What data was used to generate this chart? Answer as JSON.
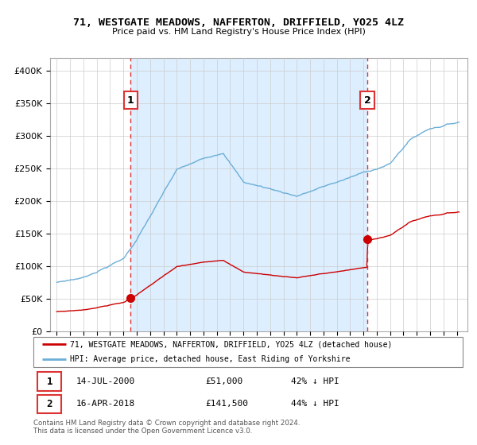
{
  "title": "71, WESTGATE MEADOWS, NAFFERTON, DRIFFIELD, YO25 4LZ",
  "subtitle": "Price paid vs. HM Land Registry's House Price Index (HPI)",
  "legend_line1": "71, WESTGATE MEADOWS, NAFFERTON, DRIFFIELD, YO25 4LZ (detached house)",
  "legend_line2": "HPI: Average price, detached house, East Riding of Yorkshire",
  "footnote": "Contains HM Land Registry data © Crown copyright and database right 2024.\nThis data is licensed under the Open Government Licence v3.0.",
  "sale1_label": "1",
  "sale1_date": "14-JUL-2000",
  "sale1_price": "£51,000",
  "sale1_hpi": "42% ↓ HPI",
  "sale1_year": 2000.54,
  "sale1_value": 51000,
  "sale2_label": "2",
  "sale2_date": "16-APR-2018",
  "sale2_price": "£141,500",
  "sale2_hpi": "44% ↓ HPI",
  "sale2_year": 2018.29,
  "sale2_value": 141500,
  "red_color": "#cc0000",
  "blue_color": "#6baed6",
  "shade_color": "#ddeeff",
  "dashed_red": "#dd3333",
  "background": "#ffffff",
  "grid_color": "#cccccc",
  "ylim_min": 0,
  "ylim_max": 420000,
  "xlim_min": 1994.5,
  "xlim_max": 2025.8
}
